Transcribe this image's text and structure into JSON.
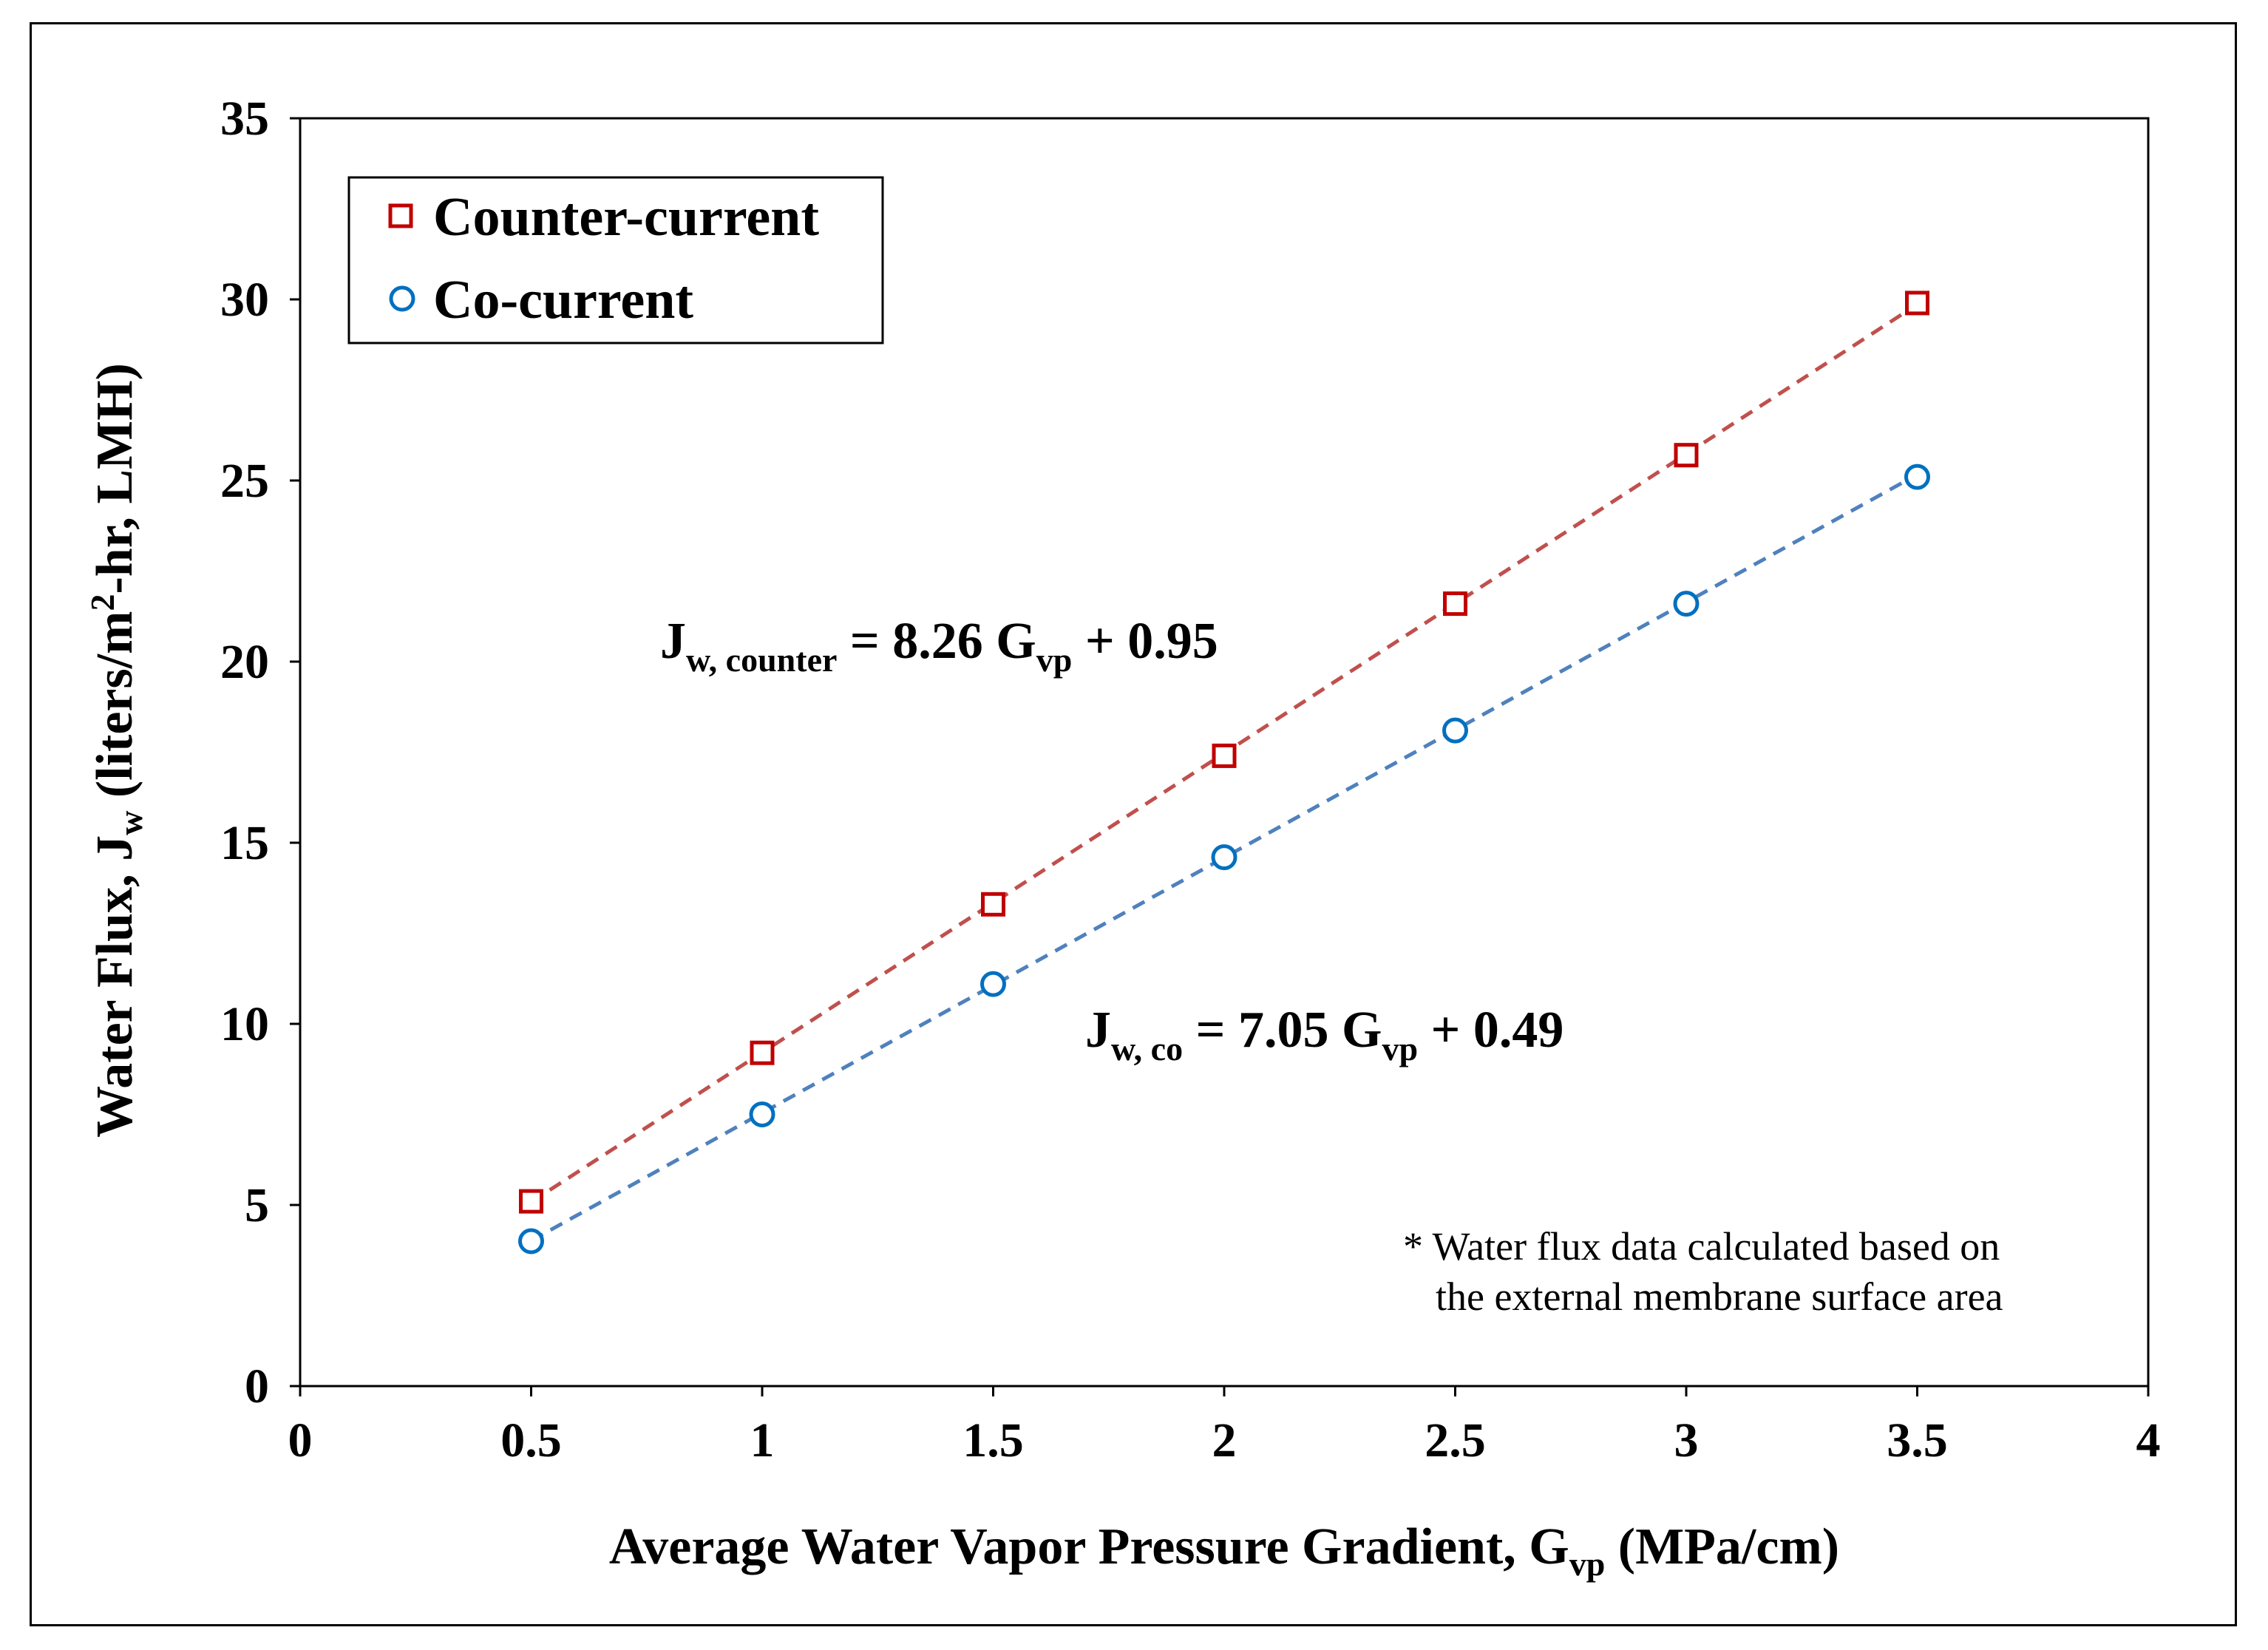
{
  "chart_data": {
    "type": "scatter",
    "title": "",
    "xlabel": {
      "main": "Average Water Vapor Pressure Gradient, G",
      "sub": "vp",
      "units": " (MPa/cm)"
    },
    "ylabel": {
      "part1": "Water Flux, J",
      "sub1": "w",
      "part2": " (liters/m",
      "sup": "2",
      "part3": "-hr, LMH)"
    },
    "xlim": [
      0,
      4
    ],
    "ylim": [
      0,
      35
    ],
    "x_ticks": [
      "0",
      "0.5",
      "1",
      "1.5",
      "2",
      "2.5",
      "3",
      "3.5",
      "4"
    ],
    "y_ticks": [
      "0",
      "5",
      "10",
      "15",
      "20",
      "25",
      "30",
      "35"
    ],
    "series": [
      {
        "name": "Counter-current",
        "marker": "square",
        "color": "#C00000",
        "line_color": "#C0504D",
        "x": [
          0.5,
          1.0,
          1.5,
          2.0,
          2.5,
          3.0,
          3.5
        ],
        "y": [
          5.1,
          9.2,
          13.3,
          17.4,
          21.6,
          25.7,
          29.9
        ],
        "fit": {
          "slope": 8.26,
          "intercept": 0.95,
          "x_range": [
            0.5,
            3.5
          ]
        }
      },
      {
        "name": "Co-current",
        "marker": "circle",
        "color": "#0070C0",
        "line_color": "#4F81BD",
        "x": [
          0.5,
          1.0,
          1.5,
          2.0,
          2.5,
          3.0,
          3.5
        ],
        "y": [
          4.0,
          7.5,
          11.1,
          14.6,
          18.1,
          21.6,
          25.1
        ],
        "fit": {
          "slope": 7.05,
          "intercept": 0.49,
          "x_range": [
            0.5,
            3.5
          ]
        }
      }
    ],
    "annotations": {
      "eq_counter": {
        "lhs": "J",
        "sub": "w, counter",
        "mid": " = 8.26 G",
        "sub2": "vp",
        "tail": " + 0.95"
      },
      "eq_co": {
        "lhs": "J",
        "sub": "w, co",
        "mid": " = 7.05 G",
        "sub2": "vp",
        "tail": " + 0.49"
      },
      "note_line1": "* Water flux data calculated based on",
      "note_line2": "the external membrane surface area"
    },
    "legend_position": "top-left",
    "grid": false
  }
}
